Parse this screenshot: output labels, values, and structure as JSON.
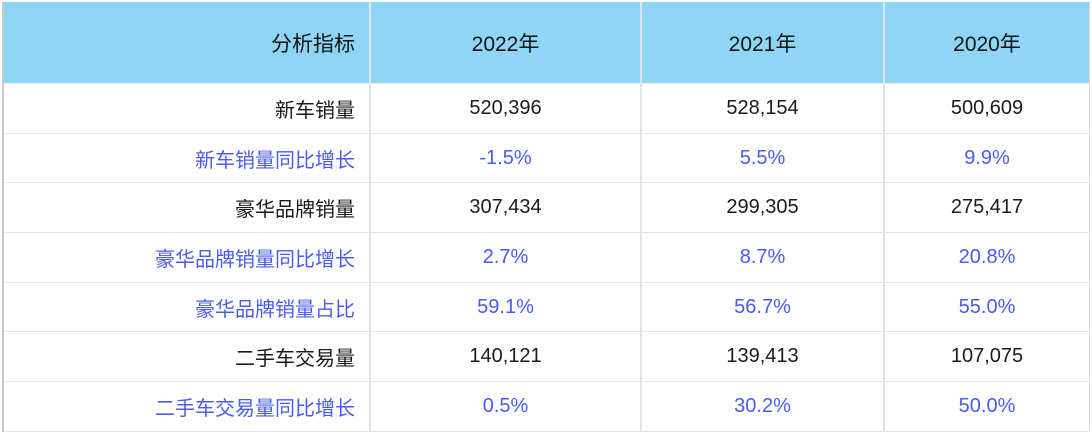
{
  "table": {
    "header": {
      "metric_label": "分析指标",
      "years": [
        "2022年",
        "2021年",
        "2020年"
      ]
    },
    "rows": [
      {
        "label": "新车销量",
        "emphasis": "count",
        "values": [
          "520,396",
          "528,154",
          "500,609"
        ]
      },
      {
        "label": "新车销量同比增长",
        "emphasis": "percent",
        "values": [
          "-1.5%",
          "5.5%",
          "9.9%"
        ]
      },
      {
        "label": "豪华品牌销量",
        "emphasis": "count",
        "values": [
          "307,434",
          "299,305",
          "275,417"
        ]
      },
      {
        "label": "豪华品牌销量同比增长",
        "emphasis": "percent",
        "values": [
          "2.7%",
          "8.7%",
          "20.8%"
        ]
      },
      {
        "label": "豪华品牌销量占比",
        "emphasis": "percent",
        "values": [
          "59.1%",
          "56.7%",
          "55.0%"
        ]
      },
      {
        "label": "二手车交易量",
        "emphasis": "count",
        "values": [
          "140,121",
          "139,413",
          "107,075"
        ]
      },
      {
        "label": "二手车交易量同比增长",
        "emphasis": "percent",
        "values": [
          "0.5%",
          "30.2%",
          "50.0%"
        ]
      }
    ],
    "colors": {
      "header_bg": "#8ed5f6",
      "accent_blue": "#4a5cf0",
      "ink": "#1b1b1b",
      "row_line": "#e4e6ea",
      "v_divider": "#e0e3e7",
      "side_border": "#c5cad0"
    }
  },
  "chart_data": {
    "type": "table",
    "title": "",
    "columns": [
      "分析指标",
      "2022年",
      "2021年",
      "2020年"
    ],
    "rows": [
      [
        "新车销量",
        "520,396",
        "528,154",
        "500,609"
      ],
      [
        "新车销量同比增长",
        "-1.5%",
        "5.5%",
        "9.9%"
      ],
      [
        "豪华品牌销量",
        "307,434",
        "299,305",
        "275,417"
      ],
      [
        "豪华品牌销量同比增长",
        "2.7%",
        "8.7%",
        "20.8%"
      ],
      [
        "豪华品牌销量占比",
        "59.1%",
        "56.7%",
        "55.0%"
      ],
      [
        "二手车交易量",
        "140,121",
        "139,413",
        "107,075"
      ],
      [
        "二手车交易量同比增长",
        "0.5%",
        "30.2%",
        "50.0%"
      ]
    ],
    "layout": {
      "header_fill": "#8ed5f6",
      "percent_rows_color": "#4a5cf0",
      "count_rows_color": "#1b1b1b",
      "first_column_align": "right",
      "value_columns_align": "center"
    }
  }
}
